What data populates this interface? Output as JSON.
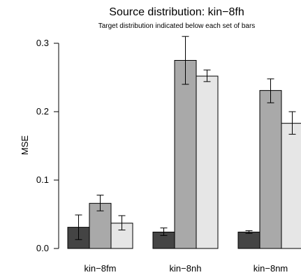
{
  "chart_data": {
    "type": "bar",
    "title": "Source distribution: kin−8fh",
    "subtitle": "Target distribution indicated below each set of bars",
    "xlabel": "",
    "ylabel": "MSE",
    "ylim": [
      0,
      0.3
    ],
    "yticks": [
      {
        "value": 0.0,
        "label": "0.0"
      },
      {
        "value": 0.1,
        "label": "0.1"
      },
      {
        "value": 0.2,
        "label": "0.2"
      },
      {
        "value": 0.3,
        "label": "0.3"
      }
    ],
    "categories": [
      "kin−8fm",
      "kin−8nh",
      "kin−8nm"
    ],
    "series": [
      {
        "color": "#444444",
        "values": [
          0.031,
          0.024,
          0.024
        ],
        "err_low": [
          0.013,
          0.019,
          0.022
        ],
        "err_high": [
          0.049,
          0.03,
          0.026
        ]
      },
      {
        "color": "#a9a9a9",
        "values": [
          0.066,
          0.275,
          0.231
        ],
        "err_low": [
          0.055,
          0.24,
          0.213
        ],
        "err_high": [
          0.078,
          0.31,
          0.248
        ]
      },
      {
        "color": "#e6e6e6",
        "values": [
          0.037,
          0.252,
          0.183
        ],
        "err_low": [
          0.027,
          0.244,
          0.167
        ],
        "err_high": [
          0.048,
          0.261,
          0.2
        ]
      }
    ],
    "grid": false,
    "legend": "none"
  }
}
